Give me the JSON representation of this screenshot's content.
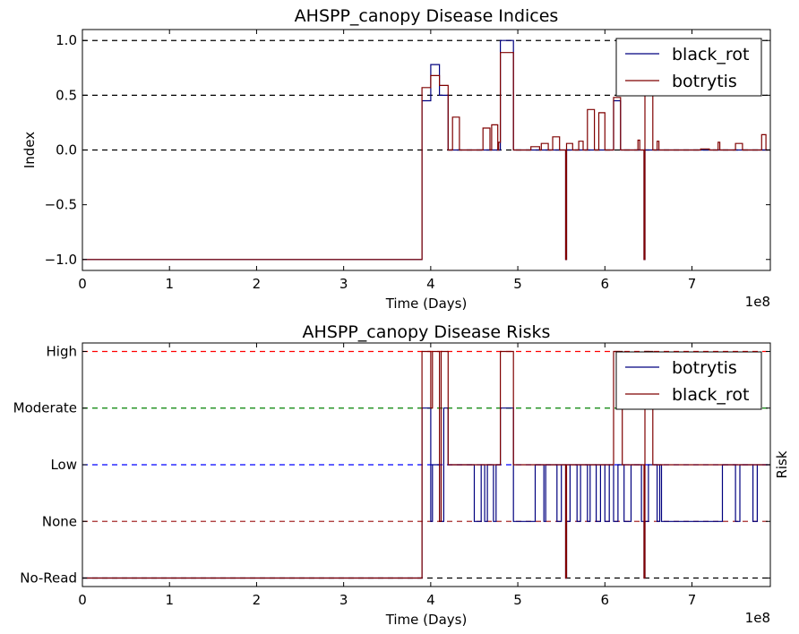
{
  "chart_data": [
    {
      "type": "line",
      "step": true,
      "title": "AHSPP_canopy Disease Indices",
      "xlabel": "Time (Days)",
      "ylabel": "Index",
      "x_multiplier_label": "1e8",
      "xlim": [
        0,
        7.9
      ],
      "ylim": [
        -1.1,
        1.1
      ],
      "xticks": [
        0,
        1,
        2,
        3,
        4,
        5,
        6,
        7
      ],
      "xtick_labels": [
        "0",
        "1",
        "2",
        "3",
        "4",
        "5",
        "6",
        "7"
      ],
      "yticks": [
        -1.0,
        -0.5,
        0.0,
        0.5,
        1.0
      ],
      "ytick_labels": [
        "−1.0",
        "−0.5",
        "0.0",
        "0.5",
        "1.0"
      ],
      "reference_lines": [
        {
          "y": 1.0,
          "color": "#000000"
        },
        {
          "y": 0.5,
          "color": "#000000"
        },
        {
          "y": 0.0,
          "color": "#000000"
        }
      ],
      "legend_position": "top-right",
      "grid": false,
      "series": [
        {
          "name": "black_rot",
          "color": "#00007f",
          "points": [
            [
              0,
              -1
            ],
            [
              3.9,
              -1
            ],
            [
              3.9,
              0.45
            ],
            [
              4.0,
              0.45
            ],
            [
              4.0,
              0.78
            ],
            [
              4.1,
              0.78
            ],
            [
              4.1,
              0.5
            ],
            [
              4.2,
              0.5
            ],
            [
              4.2,
              0
            ],
            [
              4.8,
              0
            ],
            [
              4.8,
              1.0
            ],
            [
              4.95,
              1.0
            ],
            [
              4.95,
              0
            ],
            [
              5.55,
              0
            ],
            [
              5.55,
              -1
            ],
            [
              5.56,
              -1
            ],
            [
              5.56,
              0
            ],
            [
              6.1,
              0
            ],
            [
              6.1,
              0.45
            ],
            [
              6.18,
              0.45
            ],
            [
              6.18,
              0
            ],
            [
              6.45,
              0
            ],
            [
              6.45,
              -1
            ],
            [
              6.46,
              -1
            ],
            [
              6.46,
              0
            ],
            [
              7.9,
              0
            ]
          ]
        },
        {
          "name": "botrytis",
          "color": "#7f0000",
          "points": [
            [
              0,
              -1
            ],
            [
              3.9,
              -1
            ],
            [
              3.9,
              0.57
            ],
            [
              4.0,
              0.57
            ],
            [
              4.0,
              0.68
            ],
            [
              4.1,
              0.68
            ],
            [
              4.1,
              0.59
            ],
            [
              4.2,
              0.59
            ],
            [
              4.2,
              0
            ],
            [
              4.25,
              0
            ],
            [
              4.25,
              0.3
            ],
            [
              4.33,
              0.3
            ],
            [
              4.33,
              0
            ],
            [
              4.6,
              0
            ],
            [
              4.6,
              0.2
            ],
            [
              4.68,
              0.2
            ],
            [
              4.68,
              0
            ],
            [
              4.7,
              0
            ],
            [
              4.7,
              0.23
            ],
            [
              4.77,
              0.23
            ],
            [
              4.77,
              0
            ],
            [
              4.78,
              0
            ],
            [
              4.78,
              0.07
            ],
            [
              4.8,
              0.07
            ],
            [
              4.8,
              0.89
            ],
            [
              4.95,
              0.89
            ],
            [
              4.95,
              0
            ],
            [
              5.15,
              0
            ],
            [
              5.15,
              0.03
            ],
            [
              5.25,
              0.03
            ],
            [
              5.25,
              0
            ],
            [
              5.27,
              0
            ],
            [
              5.27,
              0.06
            ],
            [
              5.35,
              0.06
            ],
            [
              5.35,
              0
            ],
            [
              5.4,
              0
            ],
            [
              5.4,
              0.12
            ],
            [
              5.48,
              0.12
            ],
            [
              5.48,
              0
            ],
            [
              5.55,
              0
            ],
            [
              5.55,
              -1
            ],
            [
              5.56,
              -1
            ],
            [
              5.56,
              0.06
            ],
            [
              5.63,
              0.06
            ],
            [
              5.63,
              0
            ],
            [
              5.7,
              0
            ],
            [
              5.7,
              0.08
            ],
            [
              5.75,
              0.08
            ],
            [
              5.75,
              0
            ],
            [
              5.8,
              0
            ],
            [
              5.8,
              0.37
            ],
            [
              5.88,
              0.37
            ],
            [
              5.88,
              0
            ],
            [
              5.93,
              0
            ],
            [
              5.93,
              0.34
            ],
            [
              6.0,
              0.34
            ],
            [
              6.0,
              0
            ],
            [
              6.1,
              0
            ],
            [
              6.1,
              0.48
            ],
            [
              6.18,
              0.48
            ],
            [
              6.18,
              0
            ],
            [
              6.38,
              0
            ],
            [
              6.38,
              0.09
            ],
            [
              6.4,
              0.09
            ],
            [
              6.4,
              0
            ],
            [
              6.45,
              0
            ],
            [
              6.45,
              -1
            ],
            [
              6.46,
              -1
            ],
            [
              6.46,
              0.5
            ],
            [
              6.55,
              0.5
            ],
            [
              6.55,
              0
            ],
            [
              6.6,
              0
            ],
            [
              6.6,
              0.08
            ],
            [
              6.62,
              0.08
            ],
            [
              6.62,
              0
            ],
            [
              7.1,
              0
            ],
            [
              7.1,
              0.01
            ],
            [
              7.2,
              0.01
            ],
            [
              7.2,
              0
            ],
            [
              7.3,
              0
            ],
            [
              7.3,
              0.07
            ],
            [
              7.32,
              0.07
            ],
            [
              7.32,
              0
            ],
            [
              7.5,
              0
            ],
            [
              7.5,
              0.06
            ],
            [
              7.58,
              0.06
            ],
            [
              7.58,
              0
            ],
            [
              7.8,
              0
            ],
            [
              7.8,
              0.14
            ],
            [
              7.85,
              0.14
            ],
            [
              7.85,
              0
            ],
            [
              7.9,
              0
            ]
          ]
        }
      ]
    },
    {
      "type": "line",
      "step": true,
      "title": "AHSPP_canopy Disease Risks",
      "xlabel": "Time (Days)",
      "ylabel": "Risk",
      "x_multiplier_label": "1e8",
      "xlim": [
        0,
        7.9
      ],
      "ylim": [
        -0.15,
        4.15
      ],
      "xticks": [
        0,
        1,
        2,
        3,
        4,
        5,
        6,
        7
      ],
      "xtick_labels": [
        "0",
        "1",
        "2",
        "3",
        "4",
        "5",
        "6",
        "7"
      ],
      "yticks": [
        0,
        1,
        2,
        3,
        4
      ],
      "ytick_labels": [
        "No-Read",
        "None",
        "Low",
        "Moderate",
        "High"
      ],
      "reference_lines": [
        {
          "y": 4,
          "color": "#ff0000"
        },
        {
          "y": 3,
          "color": "#008000"
        },
        {
          "y": 2,
          "color": "#0000ff"
        },
        {
          "y": 1,
          "color": "#a52a2a"
        },
        {
          "y": 0,
          "color": "#000000"
        }
      ],
      "legend_position": "top-right",
      "grid": false,
      "series": [
        {
          "name": "botrytis",
          "color": "#00007f",
          "points": [
            [
              0,
              0
            ],
            [
              3.9,
              0
            ],
            [
              3.9,
              3
            ],
            [
              4.0,
              3
            ],
            [
              4.0,
              1
            ],
            [
              4.02,
              1
            ],
            [
              4.02,
              2
            ],
            [
              4.1,
              2
            ],
            [
              4.1,
              1
            ],
            [
              4.15,
              1
            ],
            [
              4.15,
              3
            ],
            [
              4.2,
              3
            ],
            [
              4.2,
              2
            ],
            [
              4.5,
              2
            ],
            [
              4.5,
              1
            ],
            [
              4.58,
              1
            ],
            [
              4.58,
              2
            ],
            [
              4.62,
              2
            ],
            [
              4.62,
              1
            ],
            [
              4.65,
              1
            ],
            [
              4.65,
              2
            ],
            [
              4.72,
              2
            ],
            [
              4.72,
              1
            ],
            [
              4.75,
              1
            ],
            [
              4.75,
              2
            ],
            [
              4.8,
              2
            ],
            [
              4.8,
              3
            ],
            [
              4.95,
              3
            ],
            [
              4.95,
              1
            ],
            [
              5.2,
              1
            ],
            [
              5.2,
              2
            ],
            [
              5.3,
              2
            ],
            [
              5.3,
              1
            ],
            [
              5.32,
              1
            ],
            [
              5.32,
              2
            ],
            [
              5.45,
              2
            ],
            [
              5.45,
              1
            ],
            [
              5.5,
              1
            ],
            [
              5.5,
              2
            ],
            [
              5.55,
              2
            ],
            [
              5.55,
              0
            ],
            [
              5.56,
              0
            ],
            [
              5.56,
              1
            ],
            [
              5.6,
              1
            ],
            [
              5.6,
              2
            ],
            [
              5.68,
              2
            ],
            [
              5.68,
              1
            ],
            [
              5.72,
              1
            ],
            [
              5.72,
              2
            ],
            [
              5.8,
              2
            ],
            [
              5.8,
              1
            ],
            [
              5.83,
              1
            ],
            [
              5.83,
              2
            ],
            [
              5.9,
              2
            ],
            [
              5.9,
              1
            ],
            [
              5.95,
              1
            ],
            [
              5.95,
              2
            ],
            [
              6.0,
              2
            ],
            [
              6.0,
              1
            ],
            [
              6.05,
              1
            ],
            [
              6.05,
              2
            ],
            [
              6.1,
              2
            ],
            [
              6.1,
              1
            ],
            [
              6.15,
              1
            ],
            [
              6.15,
              2
            ],
            [
              6.22,
              2
            ],
            [
              6.22,
              1
            ],
            [
              6.3,
              1
            ],
            [
              6.3,
              2
            ],
            [
              6.42,
              2
            ],
            [
              6.42,
              1
            ],
            [
              6.45,
              1
            ],
            [
              6.45,
              0
            ],
            [
              6.46,
              0
            ],
            [
              6.46,
              1
            ],
            [
              6.5,
              1
            ],
            [
              6.5,
              2
            ],
            [
              6.6,
              2
            ],
            [
              6.6,
              1
            ],
            [
              6.63,
              1
            ],
            [
              6.63,
              2
            ],
            [
              6.65,
              2
            ],
            [
              6.65,
              1
            ],
            [
              7.35,
              1
            ],
            [
              7.35,
              2
            ],
            [
              7.5,
              2
            ],
            [
              7.5,
              1
            ],
            [
              7.55,
              1
            ],
            [
              7.55,
              2
            ],
            [
              7.7,
              2
            ],
            [
              7.7,
              1
            ],
            [
              7.75,
              1
            ],
            [
              7.75,
              2
            ],
            [
              7.9,
              2
            ]
          ]
        },
        {
          "name": "black_rot",
          "color": "#7f0000",
          "points": [
            [
              0,
              0
            ],
            [
              3.9,
              0
            ],
            [
              3.9,
              4
            ],
            [
              4.0,
              4
            ],
            [
              4.0,
              3
            ],
            [
              4.02,
              3
            ],
            [
              4.02,
              4
            ],
            [
              4.1,
              4
            ],
            [
              4.1,
              1
            ],
            [
              4.12,
              1
            ],
            [
              4.12,
              4
            ],
            [
              4.2,
              4
            ],
            [
              4.2,
              2
            ],
            [
              4.8,
              2
            ],
            [
              4.8,
              4
            ],
            [
              4.95,
              4
            ],
            [
              4.95,
              2
            ],
            [
              5.55,
              2
            ],
            [
              5.55,
              0
            ],
            [
              5.56,
              0
            ],
            [
              5.56,
              2
            ],
            [
              6.1,
              2
            ],
            [
              6.1,
              4
            ],
            [
              6.2,
              4
            ],
            [
              6.2,
              2
            ],
            [
              6.45,
              2
            ],
            [
              6.45,
              0
            ],
            [
              6.46,
              0
            ],
            [
              6.46,
              4
            ],
            [
              6.55,
              4
            ],
            [
              6.55,
              2
            ],
            [
              7.9,
              2
            ]
          ]
        }
      ]
    }
  ]
}
